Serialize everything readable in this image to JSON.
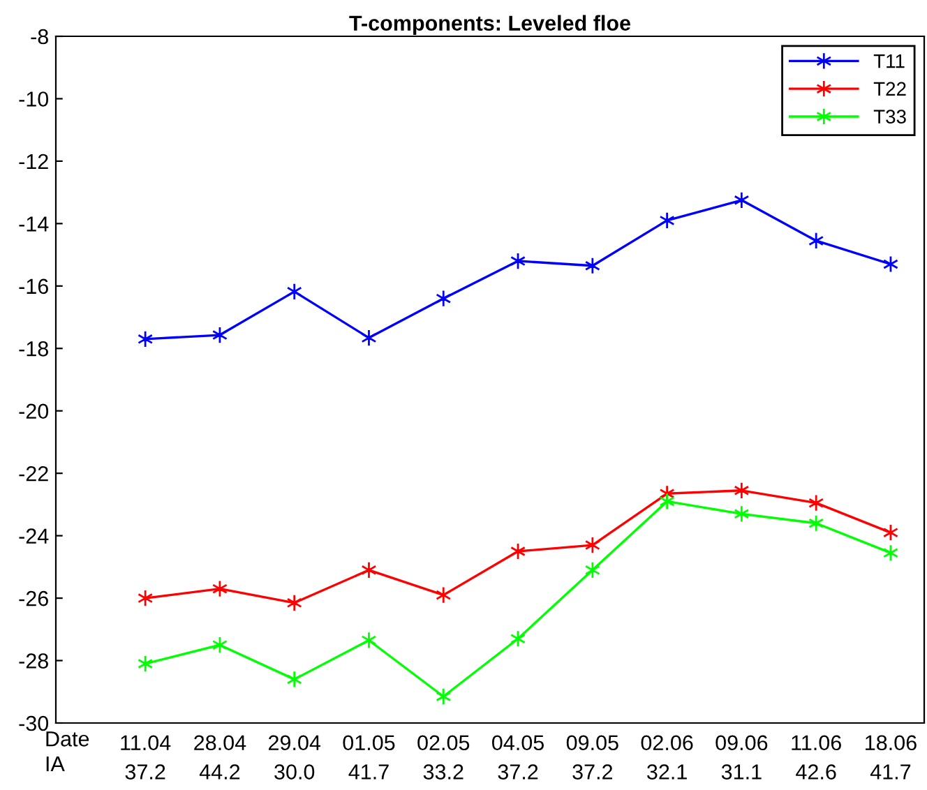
{
  "chart_data": {
    "type": "line",
    "title": "T-components: Leveled floe",
    "categories": [
      "11.04\n37.2",
      "28.04\n44.2",
      "29.04\n30.0",
      "01.05\n41.7",
      "02.05\n33.2",
      "04.05\n37.2",
      "09.05\n37.2",
      "02.06\n32.1",
      "09.06\n31.1",
      "11.06\n42.6",
      "18.06\n41.7"
    ],
    "annotations": [
      "Date",
      "IA"
    ],
    "series": [
      {
        "name": "T11",
        "color": "#0000ff",
        "values": [
          -17.7,
          -17.57,
          -16.18,
          -17.66,
          -16.4,
          -15.2,
          -15.35,
          -13.9,
          -13.25,
          -14.55,
          -15.3
        ]
      },
      {
        "name": "T22",
        "color": "#ff0000",
        "values": [
          -26.0,
          -25.7,
          -26.15,
          -25.1,
          -25.9,
          -24.5,
          -24.3,
          -22.65,
          -22.55,
          -22.95,
          -23.9
        ]
      },
      {
        "name": "T33",
        "color": "#00ff00",
        "values": [
          -28.1,
          -27.5,
          -28.6,
          -27.35,
          -29.15,
          -27.3,
          -25.1,
          -22.9,
          -23.3,
          -23.6,
          -24.55
        ]
      }
    ],
    "ylim": [
      -30,
      -8
    ],
    "yticks": [
      -30,
      -28,
      -26,
      -24,
      -22,
      -20,
      -18,
      -16,
      -14,
      -12,
      -10,
      -8
    ],
    "grid": false,
    "legend": "top right",
    "marker": "cross",
    "line_style": "solid"
  }
}
